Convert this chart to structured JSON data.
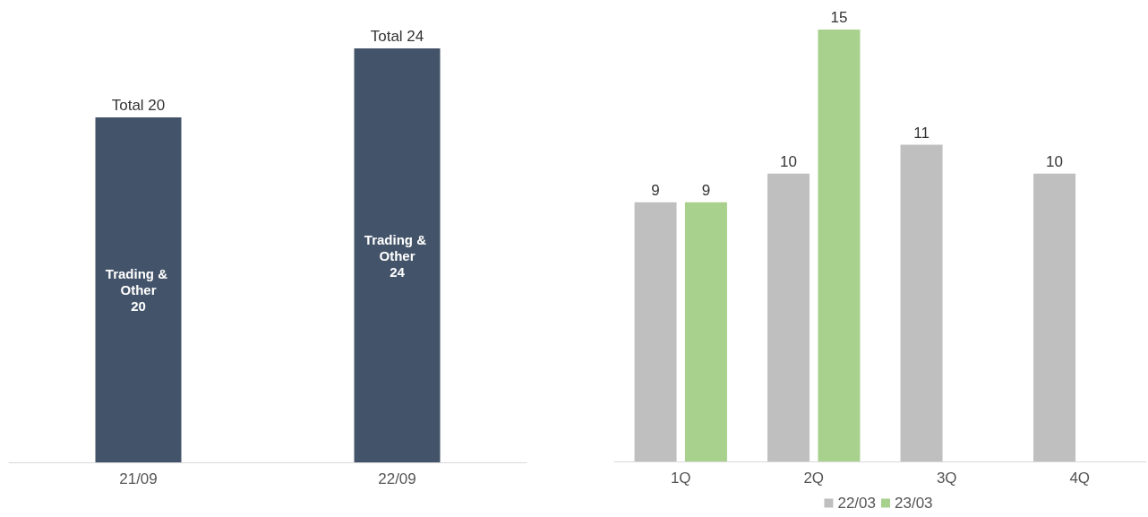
{
  "chart_data": [
    {
      "type": "bar",
      "categories": [
        "21/09",
        "22/09"
      ],
      "series": [
        {
          "name": "Trading & Other",
          "color": "#435369",
          "values": [
            20,
            24
          ]
        }
      ],
      "data_labels": true,
      "totals": [
        "Total 20",
        "Total 24"
      ],
      "stacked": true,
      "legend": false
    },
    {
      "type": "bar",
      "categories": [
        "1Q",
        "2Q",
        "3Q",
        "4Q"
      ],
      "series": [
        {
          "name": "22/03",
          "color": "#bfbfbf",
          "values": [
            9,
            10,
            11,
            10
          ]
        },
        {
          "name": "23/03",
          "color": "#a9d18e",
          "values": [
            9,
            15,
            null,
            null
          ]
        }
      ],
      "data_labels": true,
      "legend": "bottom"
    }
  ]
}
